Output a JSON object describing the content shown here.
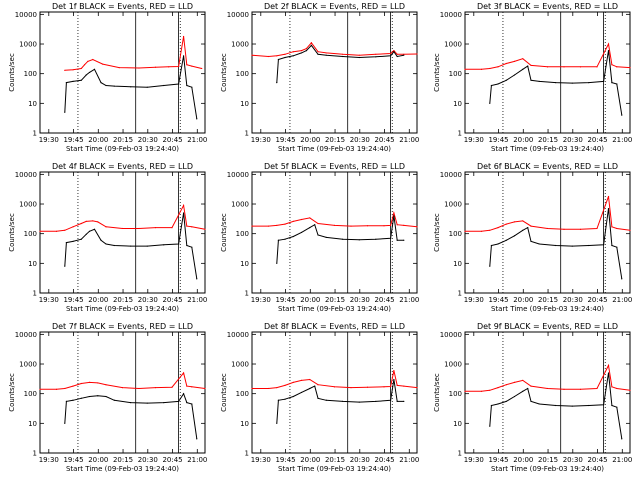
{
  "chart_data": [
    {
      "type": "line",
      "title": "Det 1f BLACK = Events, RED = LLD",
      "xlabel": "Start Time (09-Feb-03 19:24:40)",
      "ylabel": "Counts/sec",
      "x_ticks": [
        "19:30",
        "19:45",
        "20:00",
        "20:15",
        "20:30",
        "20:45",
        "21:00"
      ],
      "y_ticks": [
        "1",
        "10",
        "100",
        "1000",
        "10000"
      ],
      "y_scale": "log",
      "ylim": [
        1,
        12000
      ],
      "xlim_minutes": [
        0,
        100
      ],
      "series": [
        {
          "name": "RED",
          "color": "#ff0000",
          "x": [
            15,
            20,
            25,
            27,
            29,
            32,
            38,
            48,
            60,
            70,
            78,
            84,
            87,
            89,
            92,
            98
          ],
          "y": [
            130,
            135,
            150,
            200,
            260,
            300,
            210,
            160,
            155,
            165,
            170,
            175,
            1800,
            200,
            180,
            150
          ]
        },
        {
          "name": "BLACK",
          "color": "#000000",
          "x": [
            15,
            16,
            20,
            25,
            28,
            30,
            33,
            37,
            40,
            45,
            55,
            65,
            75,
            84,
            87,
            89,
            92,
            95
          ],
          "y": [
            5,
            50,
            55,
            60,
            90,
            110,
            140,
            50,
            40,
            38,
            36,
            35,
            40,
            45,
            400,
            40,
            35,
            3
          ]
        }
      ]
    },
    {
      "type": "line",
      "title": "Det 2f BLACK = Events, RED = LLD",
      "xlabel": "Start Time (09-Feb-03 19:24:40)",
      "ylabel": "Counts/sec",
      "x_ticks": [
        "19:30",
        "19:45",
        "20:00",
        "20:15",
        "20:30",
        "20:45",
        "21:00"
      ],
      "y_ticks": [
        "1",
        "10",
        "100",
        "1000",
        "10000"
      ],
      "y_scale": "log",
      "ylim": [
        1,
        12000
      ],
      "xlim_minutes": [
        0,
        100
      ],
      "series": [
        {
          "name": "RED",
          "color": "#ff0000",
          "x": [
            0,
            10,
            15,
            20,
            25,
            30,
            33,
            36,
            40,
            45,
            55,
            65,
            75,
            84,
            86,
            88,
            92,
            100
          ],
          "y": [
            420,
            380,
            400,
            450,
            550,
            600,
            700,
            1100,
            550,
            500,
            450,
            420,
            450,
            480,
            600,
            450,
            450,
            460
          ]
        },
        {
          "name": "BLACK",
          "color": "#000000",
          "x": [
            15,
            16,
            20,
            25,
            30,
            33,
            36,
            40,
            45,
            55,
            65,
            75,
            84,
            86,
            88,
            92
          ],
          "y": [
            50,
            300,
            350,
            400,
            500,
            600,
            900,
            450,
            420,
            380,
            350,
            370,
            400,
            550,
            380,
            420
          ]
        }
      ]
    },
    {
      "type": "line",
      "title": "Det 3f BLACK = Events, RED = LLD",
      "xlabel": "Start Time (09-Feb-03 19:24:40)",
      "ylabel": "Counts/sec",
      "x_ticks": [
        "19:30",
        "19:45",
        "20:00",
        "20:15",
        "20:30",
        "20:45",
        "21:00"
      ],
      "y_ticks": [
        "1",
        "10",
        "100",
        "1000",
        "10000"
      ],
      "y_scale": "log",
      "ylim": [
        1,
        12000
      ],
      "xlim_minutes": [
        0,
        100
      ],
      "series": [
        {
          "name": "RED",
          "color": "#ff0000",
          "x": [
            0,
            10,
            15,
            20,
            25,
            30,
            35,
            40,
            50,
            60,
            70,
            80,
            87,
            89,
            92,
            100
          ],
          "y": [
            140,
            140,
            150,
            170,
            220,
            260,
            320,
            190,
            170,
            170,
            170,
            170,
            1000,
            200,
            170,
            160
          ]
        },
        {
          "name": "BLACK",
          "color": "#000000",
          "x": [
            15,
            16,
            20,
            25,
            30,
            35,
            38,
            40,
            45,
            55,
            65,
            75,
            84,
            87,
            89,
            92,
            95
          ],
          "y": [
            10,
            40,
            45,
            60,
            90,
            140,
            180,
            60,
            55,
            50,
            48,
            50,
            55,
            600,
            50,
            45,
            4
          ]
        }
      ]
    },
    {
      "type": "line",
      "title": "Det 4f BLACK = Events, RED = LLD",
      "xlabel": "Start Time (09-Feb-03 19:24:40)",
      "ylabel": "Counts/sec",
      "x_ticks": [
        "19:30",
        "19:45",
        "20:00",
        "20:15",
        "20:30",
        "20:45",
        "21:00"
      ],
      "y_ticks": [
        "1",
        "10",
        "100",
        "1000",
        "10000"
      ],
      "y_scale": "log",
      "ylim": [
        1,
        12000
      ],
      "xlim_minutes": [
        0,
        100
      ],
      "series": [
        {
          "name": "RED",
          "color": "#ff0000",
          "x": [
            0,
            10,
            15,
            20,
            25,
            28,
            32,
            35,
            40,
            50,
            60,
            70,
            80,
            87,
            89,
            92,
            100
          ],
          "y": [
            120,
            120,
            130,
            170,
            220,
            260,
            270,
            250,
            170,
            150,
            150,
            160,
            160,
            900,
            180,
            170,
            140
          ]
        },
        {
          "name": "BLACK",
          "color": "#000000",
          "x": [
            15,
            16,
            20,
            25,
            28,
            30,
            33,
            37,
            40,
            45,
            55,
            65,
            75,
            84,
            87,
            89,
            92,
            95
          ],
          "y": [
            8,
            50,
            55,
            65,
            95,
            120,
            140,
            60,
            45,
            40,
            38,
            38,
            42,
            45,
            500,
            40,
            35,
            3
          ]
        }
      ]
    },
    {
      "type": "line",
      "title": "Det 5f BLACK = Events, RED = LLD",
      "xlabel": "Start Time (09-Feb-03 19:24:40)",
      "ylabel": "Counts/sec",
      "x_ticks": [
        "19:30",
        "19:45",
        "20:00",
        "20:15",
        "20:30",
        "20:45",
        "21:00"
      ],
      "y_ticks": [
        "1",
        "10",
        "100",
        "1000",
        "10000"
      ],
      "y_scale": "log",
      "ylim": [
        1,
        12000
      ],
      "xlim_minutes": [
        0,
        100
      ],
      "series": [
        {
          "name": "RED",
          "color": "#ff0000",
          "x": [
            0,
            10,
            15,
            20,
            25,
            30,
            35,
            40,
            50,
            60,
            70,
            80,
            84,
            86,
            88,
            92,
            100
          ],
          "y": [
            180,
            180,
            190,
            210,
            260,
            300,
            340,
            220,
            190,
            180,
            185,
            185,
            190,
            500,
            200,
            190,
            170
          ]
        },
        {
          "name": "BLACK",
          "color": "#000000",
          "x": [
            15,
            16,
            20,
            25,
            30,
            35,
            38,
            40,
            45,
            55,
            65,
            75,
            84,
            86,
            88,
            92
          ],
          "y": [
            10,
            60,
            65,
            80,
            110,
            160,
            200,
            90,
            75,
            65,
            62,
            65,
            70,
            400,
            60,
            60
          ]
        }
      ]
    },
    {
      "type": "line",
      "title": "Det 6f BLACK = Events, RED = LLD",
      "xlabel": "Start Time (09-Feb-03 19:24:40)",
      "ylabel": "Counts/sec",
      "x_ticks": [
        "19:30",
        "19:45",
        "20:00",
        "20:15",
        "20:30",
        "20:45",
        "21:00"
      ],
      "y_ticks": [
        "1",
        "10",
        "100",
        "1000",
        "10000"
      ],
      "y_scale": "log",
      "ylim": [
        1,
        12000
      ],
      "xlim_minutes": [
        0,
        100
      ],
      "series": [
        {
          "name": "RED",
          "color": "#ff0000",
          "x": [
            0,
            10,
            15,
            20,
            25,
            30,
            35,
            40,
            50,
            60,
            70,
            80,
            87,
            89,
            92,
            100
          ],
          "y": [
            120,
            120,
            130,
            160,
            210,
            250,
            270,
            180,
            150,
            140,
            140,
            150,
            1800,
            170,
            150,
            130
          ]
        },
        {
          "name": "BLACK",
          "color": "#000000",
          "x": [
            15,
            16,
            20,
            25,
            30,
            35,
            38,
            40,
            45,
            55,
            65,
            75,
            84,
            87,
            89,
            92,
            95
          ],
          "y": [
            8,
            40,
            45,
            60,
            85,
            130,
            160,
            55,
            45,
            40,
            38,
            40,
            42,
            700,
            40,
            35,
            3
          ]
        }
      ]
    },
    {
      "type": "line",
      "title": "Det 7f BLACK = Events, RED = LLD",
      "xlabel": "Start Time (09-Feb-03 19:24:40)",
      "ylabel": "Counts/sec",
      "x_ticks": [
        "19:30",
        "19:45",
        "20:00",
        "20:15",
        "20:30",
        "20:45",
        "21:00"
      ],
      "y_ticks": [
        "1",
        "10",
        "100",
        "1000",
        "10000"
      ],
      "y_scale": "log",
      "ylim": [
        1,
        12000
      ],
      "xlim_minutes": [
        0,
        100
      ],
      "series": [
        {
          "name": "RED",
          "color": "#ff0000",
          "x": [
            0,
            10,
            15,
            20,
            25,
            30,
            35,
            40,
            50,
            60,
            70,
            80,
            87,
            89,
            92,
            100
          ],
          "y": [
            140,
            140,
            150,
            180,
            220,
            240,
            230,
            200,
            160,
            150,
            160,
            165,
            500,
            180,
            170,
            150
          ]
        },
        {
          "name": "BLACK",
          "color": "#000000",
          "x": [
            15,
            16,
            20,
            25,
            30,
            35,
            40,
            45,
            55,
            65,
            75,
            84,
            87,
            89,
            92,
            95
          ],
          "y": [
            10,
            55,
            60,
            70,
            80,
            85,
            80,
            60,
            50,
            48,
            50,
            55,
            100,
            50,
            45,
            3
          ]
        }
      ]
    },
    {
      "type": "line",
      "title": "Det 8f BLACK = Events, RED = LLD",
      "xlabel": "Start Time (09-Feb-03 19:24:40)",
      "ylabel": "Counts/sec",
      "x_ticks": [
        "19:30",
        "19:45",
        "20:00",
        "20:15",
        "20:30",
        "20:45",
        "21:00"
      ],
      "y_ticks": [
        "1",
        "10",
        "100",
        "1000",
        "10000"
      ],
      "y_scale": "log",
      "ylim": [
        1,
        12000
      ],
      "xlim_minutes": [
        0,
        100
      ],
      "series": [
        {
          "name": "RED",
          "color": "#ff0000",
          "x": [
            0,
            10,
            15,
            20,
            25,
            30,
            35,
            40,
            50,
            60,
            70,
            80,
            84,
            86,
            88,
            92,
            100
          ],
          "y": [
            150,
            150,
            160,
            190,
            240,
            280,
            300,
            200,
            170,
            160,
            165,
            170,
            175,
            600,
            190,
            180,
            160
          ]
        },
        {
          "name": "BLACK",
          "color": "#000000",
          "x": [
            15,
            16,
            20,
            25,
            30,
            35,
            38,
            40,
            45,
            55,
            65,
            75,
            84,
            86,
            88,
            92
          ],
          "y": [
            10,
            60,
            65,
            80,
            110,
            150,
            180,
            70,
            60,
            55,
            52,
            55,
            60,
            300,
            55,
            55
          ]
        }
      ]
    },
    {
      "type": "line",
      "title": "Det 9f BLACK = Events, RED = LLD",
      "xlabel": "Start Time (09-Feb-03 19:24:40)",
      "ylabel": "Counts/sec",
      "x_ticks": [
        "19:30",
        "19:45",
        "20:00",
        "20:15",
        "20:30",
        "20:45",
        "21:00"
      ],
      "y_ticks": [
        "1",
        "10",
        "100",
        "1000",
        "10000"
      ],
      "y_scale": "log",
      "ylim": [
        1,
        12000
      ],
      "xlim_minutes": [
        0,
        100
      ],
      "series": [
        {
          "name": "RED",
          "color": "#ff0000",
          "x": [
            0,
            10,
            15,
            20,
            25,
            30,
            35,
            40,
            50,
            60,
            70,
            80,
            87,
            89,
            92,
            100
          ],
          "y": [
            120,
            120,
            130,
            160,
            200,
            240,
            280,
            180,
            150,
            140,
            140,
            150,
            900,
            170,
            150,
            130
          ]
        },
        {
          "name": "BLACK",
          "color": "#000000",
          "x": [
            15,
            16,
            20,
            25,
            30,
            35,
            38,
            40,
            45,
            55,
            65,
            75,
            84,
            87,
            89,
            92,
            95
          ],
          "y": [
            8,
            40,
            45,
            55,
            80,
            120,
            150,
            55,
            45,
            40,
            38,
            40,
            42,
            500,
            40,
            35,
            3
          ]
        }
      ]
    }
  ]
}
